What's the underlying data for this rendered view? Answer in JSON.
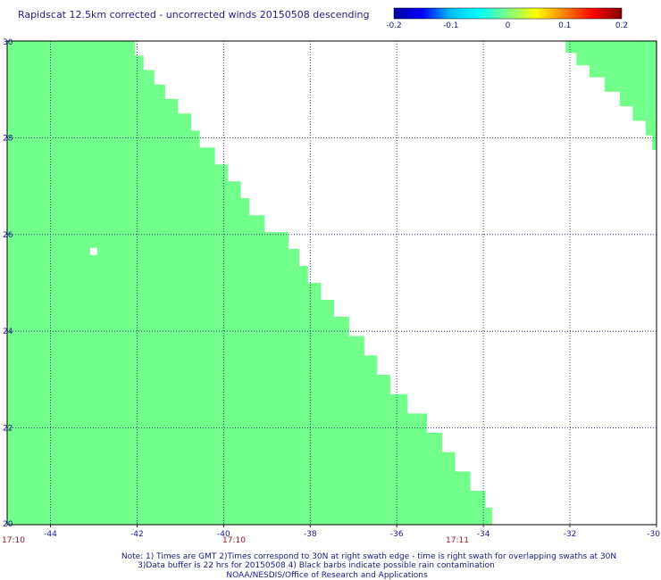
{
  "chart_data": {
    "type": "heatmap",
    "title": "Rapidscat 12.5km corrected - uncorrected winds 20150508 descending",
    "colorbar": {
      "ticks": [
        "-0.2",
        "-0.1",
        "0",
        "0.1",
        "0.2"
      ],
      "range": [
        -0.2,
        0.2
      ],
      "stops": [
        "#0000a0",
        "#0000ff",
        "#00c0ff",
        "#00ffff",
        "#80ff80",
        "#ffff00",
        "#ff8000",
        "#ff0000",
        "#800000"
      ]
    },
    "x_ticks": [
      "-44",
      "-42",
      "-40",
      "-38",
      "-36",
      "-34",
      "-32",
      "-30"
    ],
    "y_ticks": [
      "30",
      "28",
      "26",
      "24",
      "22",
      "20"
    ],
    "xlim": [
      -45,
      -30
    ],
    "ylim": [
      20,
      30
    ],
    "grid": true,
    "fill_color": "#73ff8c",
    "fill_value": 0.0,
    "swath_left_edge": [
      [
        30,
        -42.05
      ],
      [
        29.7,
        -41.85
      ],
      [
        29.4,
        -41.6
      ],
      [
        29.1,
        -41.35
      ],
      [
        28.8,
        -41.05
      ],
      [
        28.5,
        -40.75
      ],
      [
        28.15,
        -40.55
      ],
      [
        27.8,
        -40.2
      ],
      [
        27.45,
        -39.9
      ],
      [
        27.1,
        -39.6
      ],
      [
        26.75,
        -39.4
      ],
      [
        26.4,
        -39.05
      ],
      [
        26.05,
        -38.5
      ],
      [
        25.7,
        -38.25
      ],
      [
        25.35,
        -38.05
      ],
      [
        25.0,
        -37.75
      ],
      [
        24.65,
        -37.45
      ],
      [
        24.3,
        -37.1
      ],
      [
        23.9,
        -36.75
      ],
      [
        23.5,
        -36.45
      ],
      [
        23.1,
        -36.15
      ],
      [
        22.7,
        -35.75
      ],
      [
        22.3,
        -35.3
      ],
      [
        21.9,
        -34.95
      ],
      [
        21.5,
        -34.65
      ],
      [
        21.1,
        -34.3
      ],
      [
        20.7,
        -33.95
      ],
      [
        20.35,
        -33.8
      ],
      [
        20.0,
        -33.7
      ]
    ],
    "swath2_edge": [
      [
        30,
        -32.1
      ],
      [
        29.75,
        -31.85
      ],
      [
        29.5,
        -31.55
      ],
      [
        29.25,
        -31.2
      ],
      [
        28.95,
        -30.85
      ],
      [
        28.65,
        -30.55
      ],
      [
        28.35,
        -30.25
      ],
      [
        28.05,
        -30.1
      ],
      [
        27.75,
        -30.0
      ]
    ],
    "missing_cells": [
      [
        -43.0,
        25.65
      ]
    ],
    "time_labels": [
      "17:10",
      "17:10",
      "17:11"
    ]
  },
  "notes": {
    "line1": "Note: 1) Times are GMT 2)Times correspond to 30N at right swath edge - time is right swath for overlapping swaths at 30N",
    "line2": "3)Data buffer is 22 hrs for 20150508 4) Black barbs indicate possible rain contamination",
    "line3": "NOAA/NESDIS/Office of Research and Applications"
  }
}
